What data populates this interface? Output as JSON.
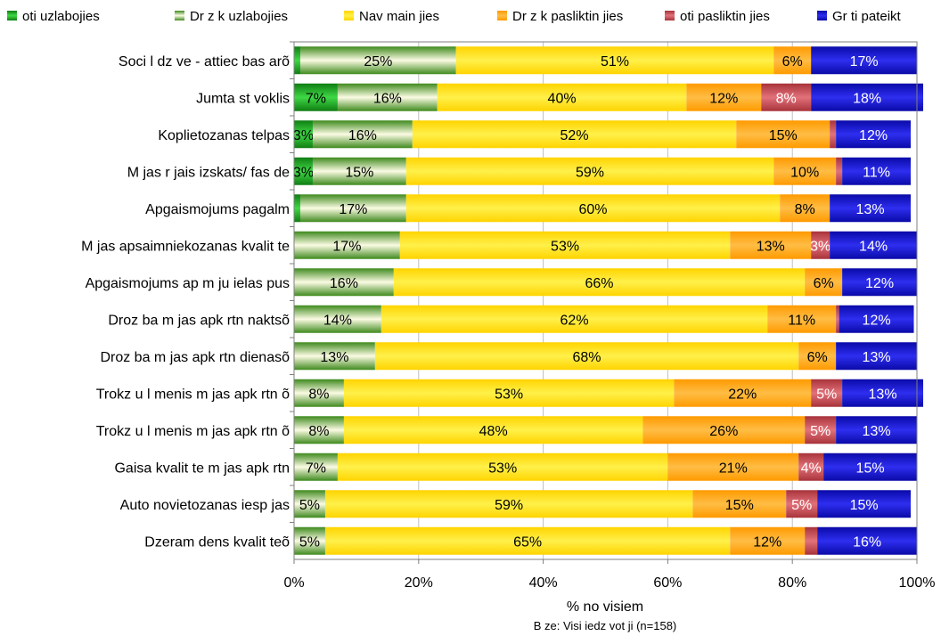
{
  "colors": {
    "s1": "#15a51a",
    "s2": "#8fbc3a",
    "s3": "#ffe21a",
    "s4": "#ffa61a",
    "s5": "#c74a52",
    "s6": "#1414c8",
    "grid": "#bfbfbf",
    "axis": "#7f7f7f"
  },
  "chart_data": {
    "type": "bar",
    "orientation": "horizontal",
    "stacked": true,
    "xlabel": "% no visiem",
    "footnote": "B ze: Visi iedz vot ji (n=158)",
    "xlim": [
      0,
      100
    ],
    "xticks": [
      "0%",
      "20%",
      "40%",
      "60%",
      "80%",
      "100%"
    ],
    "grid": true,
    "legend_position": "top",
    "categories": [
      "Soci l dz ve - attiec bas arõ",
      "Jumta st voklis",
      "Koplietozanas telpas",
      "M jas r jais izskats/ fas de",
      "Apgaismojums pagalm",
      "M jas apsaimniekozanas kvalit te",
      "Apgaismojums ap m ju ielas pus",
      "Droz ba m jas apk rtn naktsõ",
      "Droz ba m jas apk rtn dienasõ",
      "Trokz u l menis m jas apk rtn õ",
      "Trokz u l menis m jas apk rtn õ",
      "Gaisa kvalit te m jas apk rtn",
      "Auto novietozanas iesp jas",
      "Dzeram dens kvalit teõ"
    ],
    "series": [
      {
        "name": "oti uzlabojies",
        "values": [
          1,
          7,
          3,
          3,
          1,
          0,
          0,
          0,
          0,
          0,
          0,
          0,
          0,
          0
        ]
      },
      {
        "name": "Dr z k uzlabojies",
        "values": [
          25,
          16,
          16,
          15,
          17,
          17,
          16,
          14,
          13,
          8,
          8,
          7,
          5,
          5
        ]
      },
      {
        "name": "Nav main jies",
        "values": [
          51,
          40,
          52,
          59,
          60,
          53,
          66,
          62,
          68,
          53,
          48,
          53,
          59,
          65
        ]
      },
      {
        "name": "Dr z k pasliktin jies",
        "values": [
          6,
          12,
          15,
          10,
          8,
          13,
          6,
          11,
          6,
          22,
          26,
          21,
          15,
          12
        ]
      },
      {
        "name": "oti pasliktin jies",
        "values": [
          0,
          8,
          1,
          1,
          0,
          3,
          0,
          0.5,
          0,
          5,
          5,
          4,
          5,
          2
        ]
      },
      {
        "name": "Gr ti pateikt",
        "values": [
          17,
          18,
          12,
          11,
          13,
          14,
          12,
          12,
          13,
          13,
          13,
          15,
          15,
          16
        ]
      }
    ],
    "data_labels": [
      [
        "",
        "25%",
        "51%",
        "6%",
        "",
        "17%"
      ],
      [
        "7%",
        "16%",
        "40%",
        "12%",
        "8%",
        "18%"
      ],
      [
        "3%",
        "16%",
        "52%",
        "15%",
        "",
        "12%"
      ],
      [
        "3%",
        "15%",
        "59%",
        "10%",
        "",
        "11%"
      ],
      [
        "",
        "17%",
        "60%",
        "8%",
        "",
        "13%"
      ],
      [
        "",
        "17%",
        "53%",
        "13%",
        "3%",
        "14%"
      ],
      [
        "",
        "16%",
        "66%",
        "6%",
        "",
        "12%"
      ],
      [
        "",
        "14%",
        "62%",
        "11%",
        "",
        "12%"
      ],
      [
        "",
        "13%",
        "68%",
        "6%",
        "",
        "13%"
      ],
      [
        "",
        "8%",
        "53%",
        "22%",
        "5%",
        "13%"
      ],
      [
        "",
        "8%",
        "48%",
        "26%",
        "5%",
        "13%"
      ],
      [
        "",
        "7%",
        "53%",
        "21%",
        "4%",
        "15%"
      ],
      [
        "",
        "5%",
        "59%",
        "15%",
        "5%",
        "15%"
      ],
      [
        "",
        "5%",
        "65%",
        "12%",
        "",
        "16%"
      ]
    ]
  }
}
